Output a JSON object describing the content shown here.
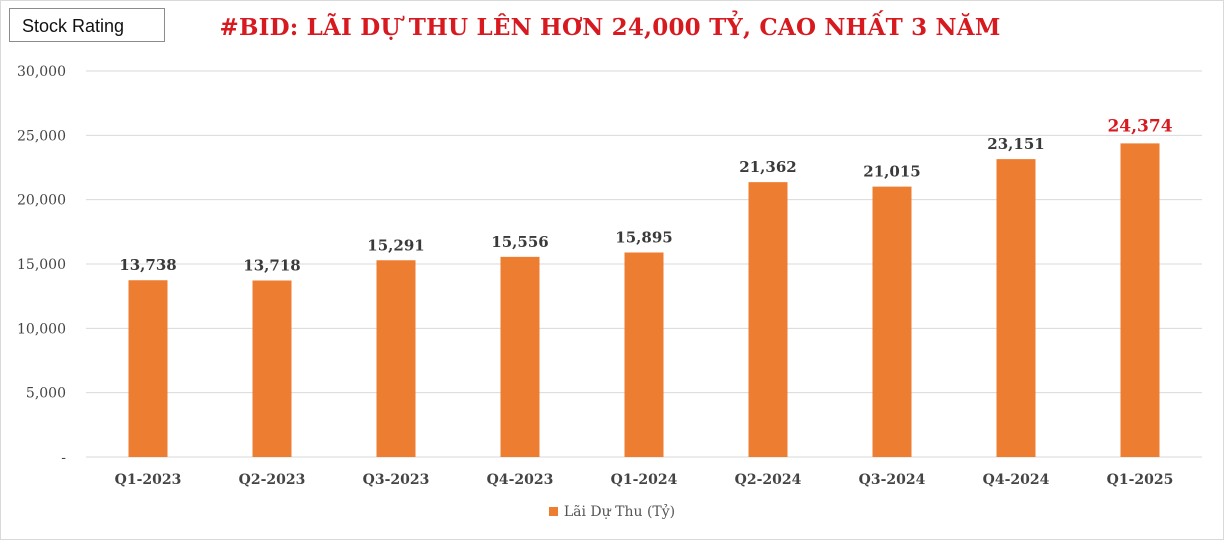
{
  "header": {
    "badge_label": "Stock Rating",
    "title": "#BID: LÃI DỰ THU LÊN HƠN 24,000 TỶ, CAO NHẤT 3 NĂM"
  },
  "colors": {
    "bar": "#ed7d31",
    "highlight_label": "#d71920",
    "label": "#3a3a3a",
    "grid": "#d9d9d9"
  },
  "chart_data": {
    "type": "bar",
    "title": "#BID: LÃI DỰ THU LÊN HƠN 24,000 TỶ, CAO NHẤT 3 NĂM",
    "categories": [
      "Q1-2023",
      "Q2-2023",
      "Q3-2023",
      "Q4-2023",
      "Q1-2024",
      "Q2-2024",
      "Q3-2024",
      "Q4-2024",
      "Q1-2025"
    ],
    "series": [
      {
        "name": "Lãi Dự Thu (Tỷ)",
        "values": [
          13738,
          13718,
          15291,
          15556,
          15895,
          21362,
          21015,
          23151,
          24374
        ]
      }
    ],
    "data_labels": [
      "13,738",
      "13,718",
      "15,291",
      "15,556",
      "15,895",
      "21,362",
      "21,015",
      "23,151",
      "24,374"
    ],
    "highlight_index": 8,
    "ylim": [
      0,
      30000
    ],
    "yticks": [
      0,
      5000,
      10000,
      15000,
      20000,
      25000,
      30000
    ],
    "ytick_labels": [
      "-",
      "5,000",
      "10,000",
      "15,000",
      "20,000",
      "25,000",
      "30,000"
    ],
    "xlabel": "",
    "ylabel": "",
    "grid": true,
    "legend_position": "bottom"
  }
}
